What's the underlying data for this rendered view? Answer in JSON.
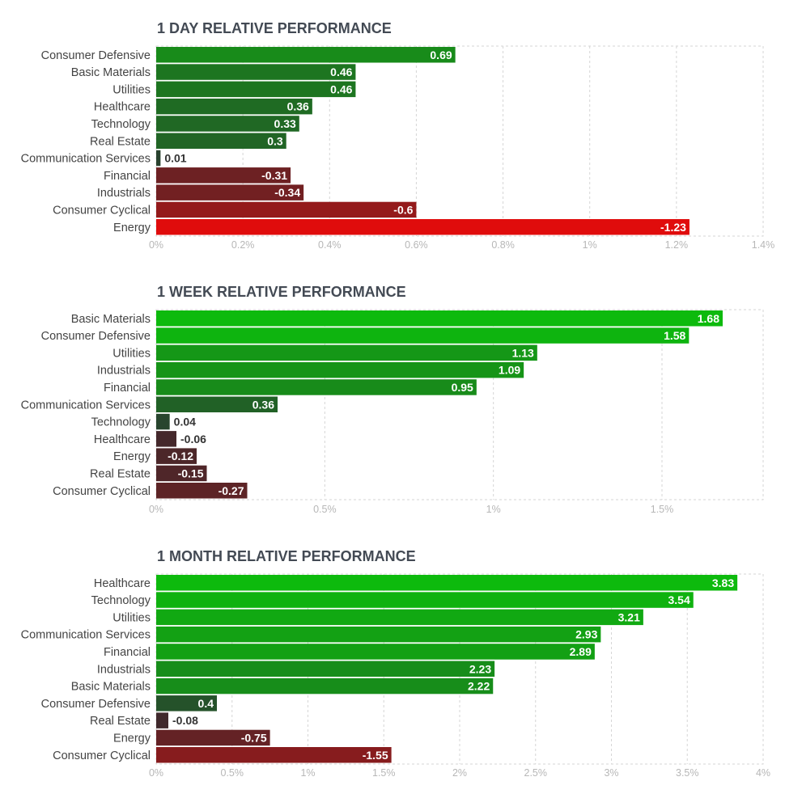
{
  "chart_data": [
    {
      "type": "bar",
      "orientation": "horizontal",
      "title": "1 DAY RELATIVE PERFORMANCE",
      "categories": [
        "Consumer Defensive",
        "Basic Materials",
        "Utilities",
        "Healthcare",
        "Technology",
        "Real Estate",
        "Communication Services",
        "Financial",
        "Industrials",
        "Consumer Cyclical",
        "Energy"
      ],
      "values": [
        0.69,
        0.46,
        0.46,
        0.36,
        0.33,
        0.3,
        0.01,
        -0.31,
        -0.34,
        -0.6,
        -1.23
      ],
      "value_labels": [
        "0.69",
        "0.46",
        "0.46",
        "0.36",
        "0.33",
        "0.3",
        "0.01",
        "-0.31",
        "-0.34",
        "-0.6",
        "-1.23"
      ],
      "xlim": [
        0,
        1.4
      ],
      "ticks": [
        0,
        0.2,
        0.4,
        0.6,
        0.8,
        1,
        1.2,
        1.4
      ],
      "tick_labels": [
        "0%",
        "0.2%",
        "0.4%",
        "0.6%",
        "0.8%",
        "1%",
        "1.2%",
        "1.4%"
      ],
      "xlabel": "",
      "ylabel": "",
      "grid": true
    },
    {
      "type": "bar",
      "orientation": "horizontal",
      "title": "1 WEEK RELATIVE PERFORMANCE",
      "categories": [
        "Basic Materials",
        "Consumer Defensive",
        "Utilities",
        "Industrials",
        "Financial",
        "Communication Services",
        "Technology",
        "Healthcare",
        "Energy",
        "Real Estate",
        "Consumer Cyclical"
      ],
      "values": [
        1.68,
        1.58,
        1.13,
        1.09,
        0.95,
        0.36,
        0.04,
        -0.06,
        -0.12,
        -0.15,
        -0.27
      ],
      "value_labels": [
        "1.68",
        "1.58",
        "1.13",
        "1.09",
        "0.95",
        "0.36",
        "0.04",
        "-0.06",
        "-0.12",
        "-0.15",
        "-0.27"
      ],
      "xlim": [
        0,
        1.8
      ],
      "ticks": [
        0,
        0.5,
        1,
        1.5
      ],
      "tick_labels": [
        "0%",
        "0.5%",
        "1%",
        "1.5%"
      ],
      "xlabel": "",
      "ylabel": "",
      "grid": true
    },
    {
      "type": "bar",
      "orientation": "horizontal",
      "title": "1 MONTH RELATIVE PERFORMANCE",
      "categories": [
        "Healthcare",
        "Technology",
        "Utilities",
        "Communication Services",
        "Financial",
        "Industrials",
        "Basic Materials",
        "Consumer Defensive",
        "Real Estate",
        "Energy",
        "Consumer Cyclical"
      ],
      "values": [
        3.83,
        3.54,
        3.21,
        2.93,
        2.89,
        2.23,
        2.22,
        0.4,
        -0.08,
        -0.75,
        -1.55
      ],
      "value_labels": [
        "3.83",
        "3.54",
        "3.21",
        "2.93",
        "2.89",
        "2.23",
        "2.22",
        "0.4",
        "-0.08",
        "-0.75",
        "-1.55"
      ],
      "xlim": [
        0,
        4
      ],
      "ticks": [
        0,
        0.5,
        1,
        1.5,
        2,
        2.5,
        3,
        3.5,
        4
      ],
      "tick_labels": [
        "0%",
        "0.5%",
        "1%",
        "1.5%",
        "2%",
        "2.5%",
        "3%",
        "3.5%",
        "4%"
      ],
      "xlabel": "",
      "ylabel": "",
      "grid": true
    }
  ],
  "colors": {
    "positive_strong": "#0dba0d",
    "positive_weak": "#29402f",
    "negative_weak": "#3a2a2d",
    "negative_strong": "#e00c0c"
  }
}
